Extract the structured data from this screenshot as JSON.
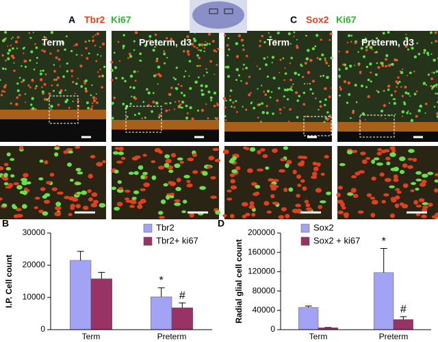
{
  "figure": {
    "panel_a": {
      "label": "A",
      "stain1": "Tbr2",
      "stain2": "Ki67"
    },
    "panel_c": {
      "label": "C",
      "stain1": "Sox2",
      "stain2": "Ki67"
    },
    "image_labels": [
      "Term",
      "Preterm, d3",
      "Term",
      "Preterm, d3"
    ]
  },
  "chart_data": [
    {
      "type": "bar",
      "panel_label": "B",
      "y_label": "I.P. Cell count",
      "categories": [
        "Term",
        "Preterm"
      ],
      "series": [
        {
          "name": "Tbr2",
          "color": "#a3a3f5",
          "values": [
            21500,
            10200
          ],
          "errors": [
            2800,
            2800
          ]
        },
        {
          "name": "Tbr2+ ki67",
          "color": "#993366",
          "values": [
            15800,
            6800
          ],
          "errors": [
            2000,
            1500
          ]
        }
      ],
      "annotations": [
        "*",
        "#"
      ],
      "ylim": [
        0,
        30000
      ],
      "yticks": [
        0,
        10000,
        20000,
        30000
      ]
    },
    {
      "type": "bar",
      "panel_label": "D",
      "y_label": "Radial glial cell count",
      "categories": [
        "Term",
        "Preterm"
      ],
      "series": [
        {
          "name": "Sox2",
          "color": "#a3a3f5",
          "values": [
            46000,
            118000
          ],
          "errors": [
            3000,
            50000
          ]
        },
        {
          "name": "Sox2 + ki67",
          "color": "#993366",
          "values": [
            4000,
            21000
          ],
          "errors": [
            500,
            6000
          ]
        }
      ],
      "annotations": [
        "*",
        "#"
      ],
      "ylim": [
        0,
        200000
      ],
      "yticks": [
        0,
        40000,
        80000,
        120000,
        160000,
        200000
      ]
    }
  ]
}
